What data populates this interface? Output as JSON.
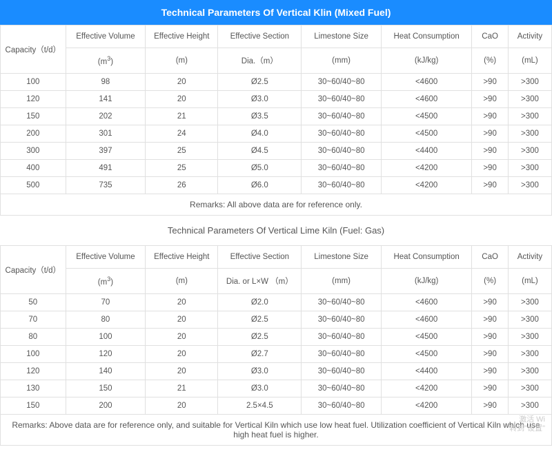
{
  "title1": "Technical Parameters Of Vertical Klin (Mixed Fuel)",
  "title2": "Technical Parameters Of Vertical Lime Kiln (Fuel: Gas)",
  "headers": {
    "capacity": "Capacity（t/d）",
    "vol": "Effective Volume",
    "vol_unit": "(m",
    "vol_sup": "3",
    "vol_close": ")",
    "hgt": "Effective Height",
    "hgt_unit": "(m)",
    "sec": "Effective Section",
    "sec_unit1": "Dia.（m）",
    "sec_unit2": "Dia. or L×W （m）",
    "lim": "Limestone Size",
    "lim_unit": "(mm)",
    "heat": "Heat Consumption",
    "heat_unit": "(kJ/kg)",
    "cao": "CaO",
    "cao_unit": "(%)",
    "act": "Activity",
    "act_unit": "(mL)"
  },
  "table1": {
    "rows": [
      {
        "cap": "100",
        "vol": "98",
        "hgt": "20",
        "sec": "Ø2.5",
        "lim": "30~60/40~80",
        "heat": "<4600",
        "cao": ">90",
        "act": ">300"
      },
      {
        "cap": "120",
        "vol": "141",
        "hgt": "20",
        "sec": "Ø3.0",
        "lim": "30~60/40~80",
        "heat": "<4600",
        "cao": ">90",
        "act": ">300"
      },
      {
        "cap": "150",
        "vol": "202",
        "hgt": "21",
        "sec": "Ø3.5",
        "lim": "30~60/40~80",
        "heat": "<4500",
        "cao": ">90",
        "act": ">300"
      },
      {
        "cap": "200",
        "vol": "301",
        "hgt": "24",
        "sec": "Ø4.0",
        "lim": "30~60/40~80",
        "heat": "<4500",
        "cao": ">90",
        "act": ">300"
      },
      {
        "cap": "300",
        "vol": "397",
        "hgt": "25",
        "sec": "Ø4.5",
        "lim": "30~60/40~80",
        "heat": "<4400",
        "cao": ">90",
        "act": ">300"
      },
      {
        "cap": "400",
        "vol": "491",
        "hgt": "25",
        "sec": "Ø5.0",
        "lim": "30~60/40~80",
        "heat": "<4200",
        "cao": ">90",
        "act": ">300"
      },
      {
        "cap": "500",
        "vol": "735",
        "hgt": "26",
        "sec": "Ø6.0",
        "lim": "30~60/40~80",
        "heat": "<4200",
        "cao": ">90",
        "act": ">300"
      }
    ],
    "remarks": "Remarks: All above data are for reference only."
  },
  "table2": {
    "rows": [
      {
        "cap": "50",
        "vol": "70",
        "hgt": "20",
        "sec": "Ø2.0",
        "lim": "30~60/40~80",
        "heat": "<4600",
        "cao": ">90",
        "act": ">300"
      },
      {
        "cap": "70",
        "vol": "80",
        "hgt": "20",
        "sec": "Ø2.5",
        "lim": "30~60/40~80",
        "heat": "<4600",
        "cao": ">90",
        "act": ">300"
      },
      {
        "cap": "80",
        "vol": "100",
        "hgt": "20",
        "sec": "Ø2.5",
        "lim": "30~60/40~80",
        "heat": "<4500",
        "cao": ">90",
        "act": ">300"
      },
      {
        "cap": "100",
        "vol": "120",
        "hgt": "20",
        "sec": "Ø2.7",
        "lim": "30~60/40~80",
        "heat": "<4500",
        "cao": ">90",
        "act": ">300"
      },
      {
        "cap": "120",
        "vol": "140",
        "hgt": "20",
        "sec": "Ø3.0",
        "lim": "30~60/40~80",
        "heat": "<4400",
        "cao": ">90",
        "act": ">300"
      },
      {
        "cap": "130",
        "vol": "150",
        "hgt": "21",
        "sec": "Ø3.0",
        "lim": "30~60/40~80",
        "heat": "<4200",
        "cao": ">90",
        "act": ">300"
      },
      {
        "cap": "150",
        "vol": "200",
        "hgt": "20",
        "sec": "2.5×4.5",
        "lim": "30~60/40~80",
        "heat": "<4200",
        "cao": ">90",
        "act": ">300"
      }
    ],
    "remarks": "Remarks: Above data are for reference only, and suitable for Vertical Kiln which use low heat fuel.  Utilization coefficient of Vertical Kiln which use high heat fuel is higher."
  },
  "watermark": {
    "l1": "激活 Wi",
    "l2": "转到\"设置\""
  }
}
